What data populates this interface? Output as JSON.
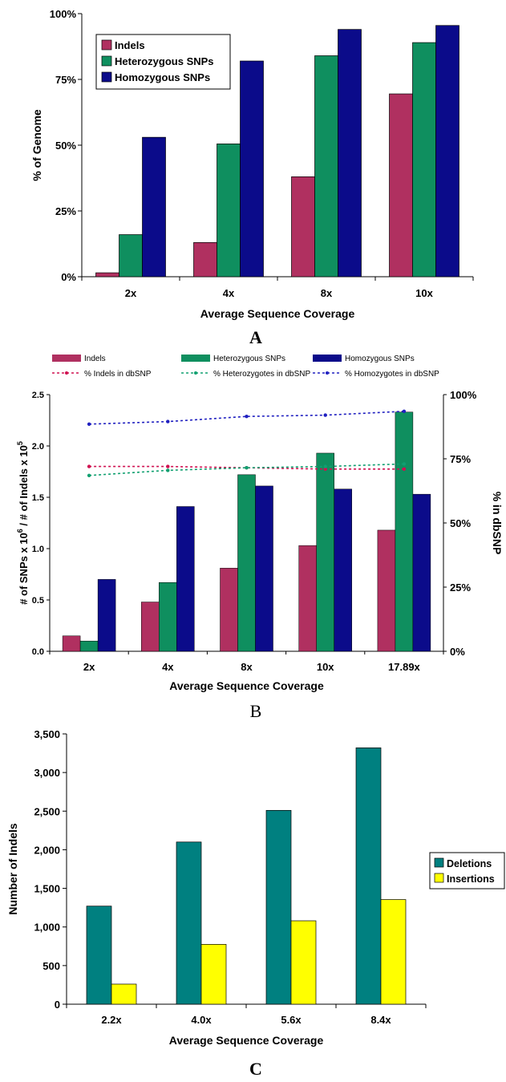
{
  "chart_data": [
    {
      "panel_label": "A",
      "type": "bar",
      "categories": [
        "2x",
        "4x",
        "8x",
        "10x"
      ],
      "series": [
        {
          "name": "Indels",
          "color": "#B03060",
          "values": [
            1.5,
            13,
            38,
            69.5
          ]
        },
        {
          "name": "Heterozygous SNPs",
          "color": "#0F8F5F",
          "values": [
            16,
            50.5,
            84,
            89
          ]
        },
        {
          "name": "Homozygous SNPs",
          "color": "#0B0B8A",
          "values": [
            53,
            82,
            94,
            95.5
          ]
        }
      ],
      "xlabel": "Average Sequence Coverage",
      "ylabel": "% of Genome",
      "ylim": [
        0,
        100
      ],
      "yticks": [
        "0%",
        "25%",
        "50%",
        "75%",
        "100%"
      ],
      "legend_position": "top-left"
    },
    {
      "panel_label": "B",
      "type": "bar",
      "categories": [
        "2x",
        "4x",
        "8x",
        "10x",
        "17.89x"
      ],
      "series": [
        {
          "name": "Indels",
          "color": "#B03060",
          "values": [
            0.15,
            0.48,
            0.81,
            1.03,
            1.18
          ]
        },
        {
          "name": "Heterozygous SNPs",
          "color": "#0F8F5F",
          "values": [
            0.1,
            0.67,
            1.72,
            1.93,
            2.33
          ]
        },
        {
          "name": "Homozygous SNPs",
          "color": "#0B0B8A",
          "values": [
            0.7,
            1.41,
            1.61,
            1.58,
            1.53
          ]
        }
      ],
      "line_series": [
        {
          "name": "% Indels in dbSNP",
          "color": "#D01050",
          "values": [
            72,
            72,
            71.5,
            71,
            71
          ]
        },
        {
          "name": "% Heterozygotes in dbSNP",
          "color": "#10A070",
          "values": [
            68.5,
            70.5,
            71.5,
            72,
            73
          ]
        },
        {
          "name": "% Homozygotes in dbSNP",
          "color": "#2020C0",
          "values": [
            88.5,
            89.5,
            91.5,
            92,
            93.5
          ]
        }
      ],
      "xlabel": "Average Sequence Coverage",
      "ylabel": "# of SNPs x 10",
      "ylabel_sup1": "6",
      "ylabel_mid": " / # of Indels x 10",
      "ylabel_sup2": "5",
      "y2label": "% in dbSNP",
      "ylim": [
        0,
        2.5
      ],
      "yticks": [
        "0.0",
        "0.5",
        "1.0",
        "1.5",
        "2.0",
        "2.5"
      ],
      "y2lim": [
        0,
        100
      ],
      "y2ticks": [
        "0%",
        "25%",
        "50%",
        "75%",
        "100%"
      ],
      "legend_position": "top"
    },
    {
      "panel_label": "C",
      "type": "bar",
      "categories": [
        "2.2x",
        "4.0x",
        "5.6x",
        "8.4x"
      ],
      "series": [
        {
          "name": "Deletions",
          "color": "#008080",
          "values": [
            1270,
            2100,
            2510,
            3320
          ]
        },
        {
          "name": "Insertions",
          "color": "#FFFF00",
          "values": [
            260,
            775,
            1080,
            1355
          ]
        }
      ],
      "xlabel": "Average Sequence Coverage",
      "ylabel": "Number of Indels",
      "ylim": [
        0,
        3500
      ],
      "yticks": [
        "0",
        "500",
        "1,000",
        "1,500",
        "2,000",
        "2,500",
        "3,000",
        "3,500"
      ],
      "legend_position": "right"
    }
  ]
}
